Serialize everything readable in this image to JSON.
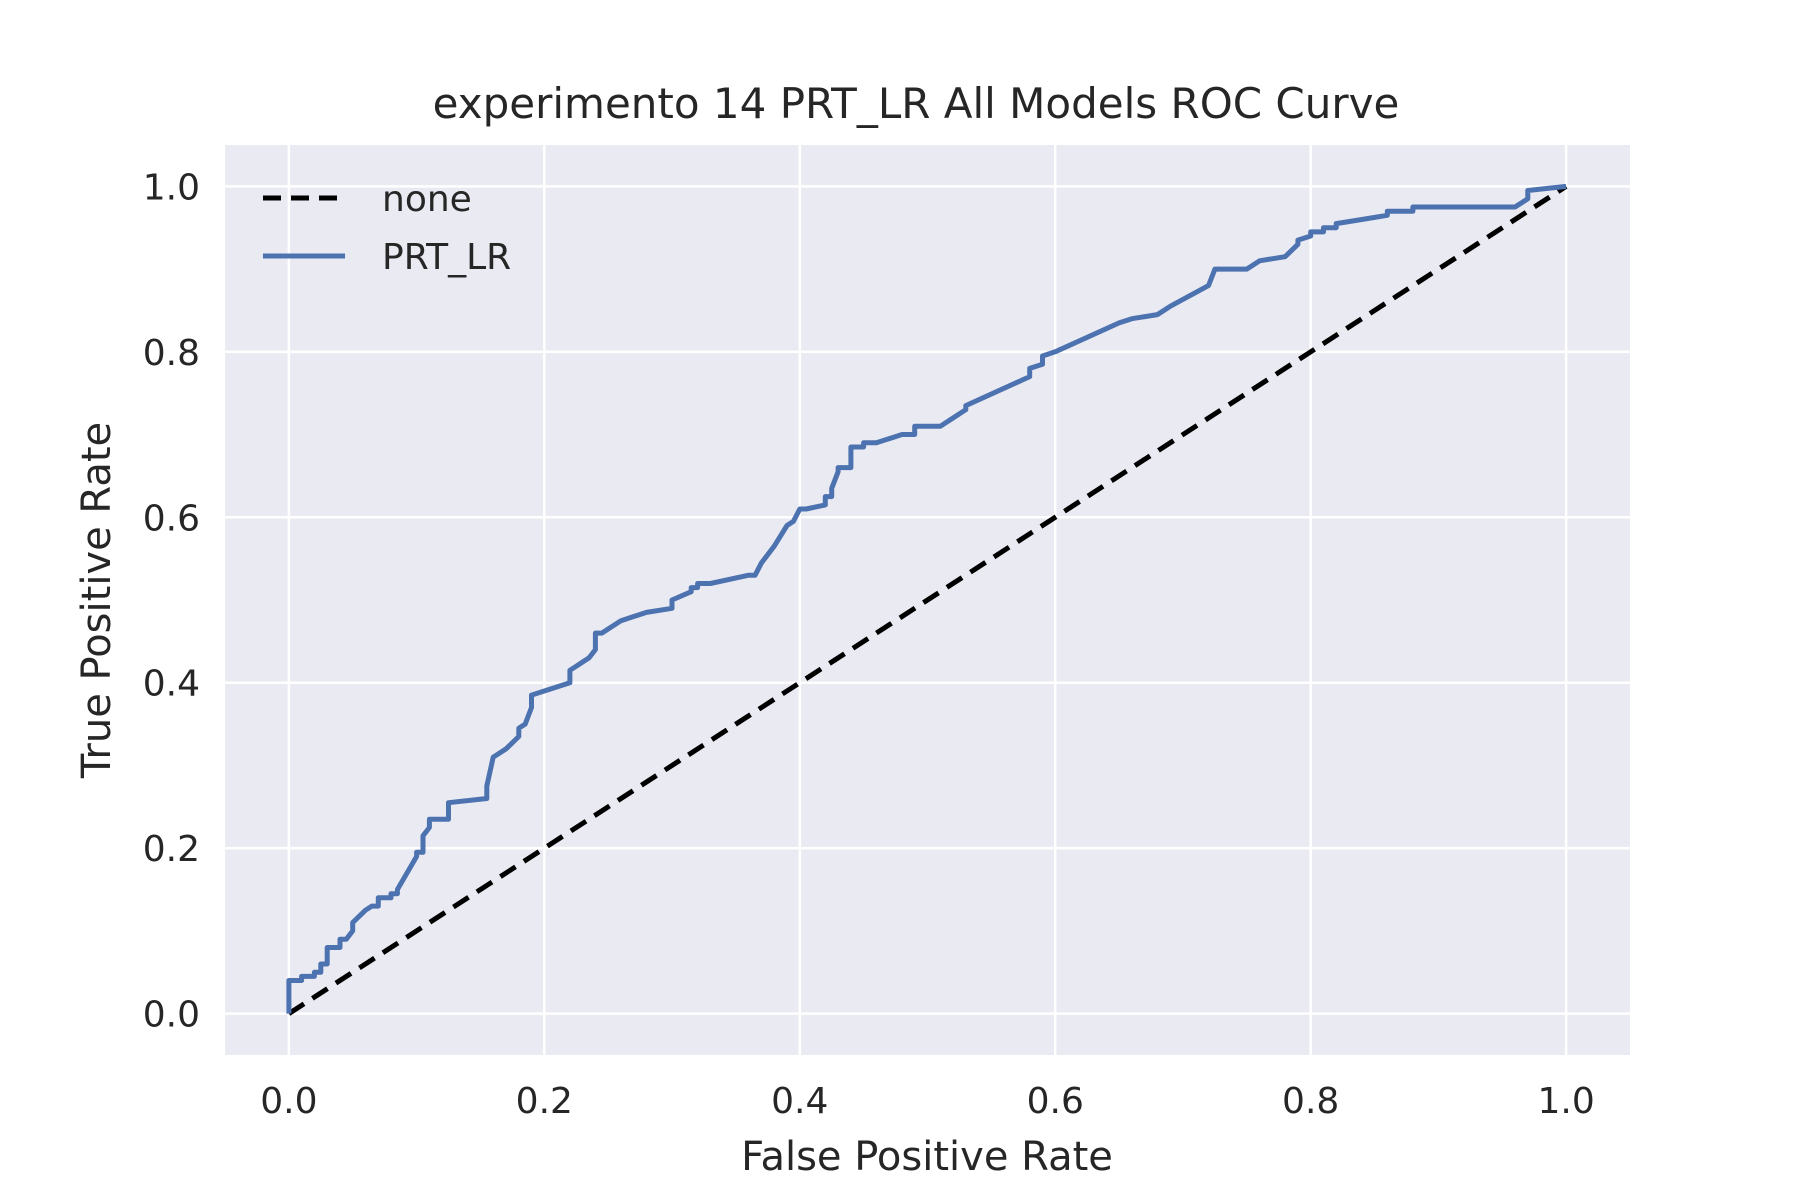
{
  "chart_data": {
    "type": "line",
    "title": "experimento 14 PRT_LR All Models ROC Curve",
    "xlabel": "False Positive Rate",
    "ylabel": "True Positive Rate",
    "xlim": [
      -0.05,
      1.05
    ],
    "ylim": [
      -0.05,
      1.05
    ],
    "xticks": [
      "0.0",
      "0.2",
      "0.4",
      "0.6",
      "0.8",
      "1.0"
    ],
    "yticks": [
      "0.0",
      "0.2",
      "0.4",
      "0.6",
      "0.8",
      "1.0"
    ],
    "grid": true,
    "legend_position": "top-left",
    "background_color": "#eaeaf2",
    "series": [
      {
        "name": "none",
        "color": "#000000",
        "style": "dashed",
        "x": [
          0,
          1
        ],
        "y": [
          0,
          1
        ]
      },
      {
        "name": "PRT_LR",
        "color": "#4c72b0",
        "style": "solid",
        "x": [
          0,
          0,
          0.01,
          0.01,
          0.02,
          0.02,
          0.025,
          0.025,
          0.03,
          0.03,
          0.04,
          0.04,
          0.045,
          0.05,
          0.05,
          0.06,
          0.065,
          0.07,
          0.07,
          0.08,
          0.08,
          0.085,
          0.085,
          0.1,
          0.1,
          0.105,
          0.105,
          0.11,
          0.11,
          0.125,
          0.125,
          0.155,
          0.155,
          0.16,
          0.17,
          0.18,
          0.18,
          0.185,
          0.19,
          0.19,
          0.2,
          0.2,
          0.21,
          0.21,
          0.22,
          0.22,
          0.225,
          0.225,
          0.23,
          0.23,
          0.235,
          0.235,
          0.24,
          0.24,
          0.245,
          0.245,
          0.26,
          0.27,
          0.27,
          0.28,
          0.28,
          0.3,
          0.3,
          0.315,
          0.315,
          0.32,
          0.32,
          0.33,
          0.33,
          0.36,
          0.365,
          0.37,
          0.38,
          0.39,
          0.395,
          0.4,
          0.405,
          0.405,
          0.42,
          0.42,
          0.425,
          0.425,
          0.43,
          0.43,
          0.44,
          0.44,
          0.45,
          0.45,
          0.46,
          0.46,
          0.48,
          0.49,
          0.49,
          0.51,
          0.52,
          0.53,
          0.53,
          0.58,
          0.58,
          0.59,
          0.59,
          0.6,
          0.65,
          0.66,
          0.68,
          0.685,
          0.69,
          0.72,
          0.725,
          0.75,
          0.76,
          0.76,
          0.78,
          0.78,
          0.79,
          0.79,
          0.8,
          0.8,
          0.81,
          0.81,
          0.82,
          0.82,
          0.84,
          0.84,
          0.86,
          0.86,
          0.88,
          0.88,
          0.95,
          0.96,
          0.97,
          0.97,
          1.0
        ],
        "y": [
          0,
          0.04,
          0.04,
          0.045,
          0.045,
          0.05,
          0.05,
          0.06,
          0.06,
          0.08,
          0.08,
          0.09,
          0.09,
          0.1,
          0.11,
          0.125,
          0.13,
          0.13,
          0.14,
          0.14,
          0.145,
          0.145,
          0.15,
          0.19,
          0.195,
          0.195,
          0.215,
          0.225,
          0.235,
          0.235,
          0.255,
          0.26,
          0.275,
          0.31,
          0.32,
          0.335,
          0.345,
          0.35,
          0.37,
          0.385,
          0.39,
          0.39,
          0.395,
          0.395,
          0.4,
          0.415,
          0.42,
          0.42,
          0.425,
          0.425,
          0.43,
          0.43,
          0.44,
          0.46,
          0.46,
          0.46,
          0.475,
          0.48,
          0.48,
          0.485,
          0.485,
          0.49,
          0.5,
          0.51,
          0.515,
          0.515,
          0.52,
          0.52,
          0.52,
          0.53,
          0.53,
          0.545,
          0.565,
          0.59,
          0.595,
          0.61,
          0.61,
          0.61,
          0.615,
          0.625,
          0.625,
          0.635,
          0.655,
          0.66,
          0.66,
          0.685,
          0.685,
          0.69,
          0.69,
          0.69,
          0.7,
          0.7,
          0.71,
          0.71,
          0.72,
          0.73,
          0.735,
          0.77,
          0.78,
          0.785,
          0.795,
          0.8,
          0.835,
          0.84,
          0.845,
          0.85,
          0.855,
          0.88,
          0.9,
          0.9,
          0.91,
          0.91,
          0.915,
          0.915,
          0.93,
          0.935,
          0.94,
          0.945,
          0.945,
          0.95,
          0.95,
          0.955,
          0.96,
          0.96,
          0.965,
          0.97,
          0.97,
          0.975,
          0.975,
          0.975,
          0.985,
          0.995,
          1.0
        ]
      }
    ]
  }
}
